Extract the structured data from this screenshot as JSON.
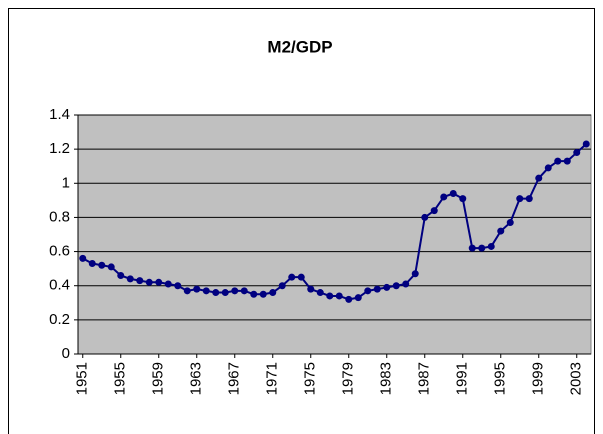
{
  "chart_data": {
    "type": "line",
    "title": "M2/GDP",
    "x": [
      1951,
      1952,
      1953,
      1954,
      1955,
      1956,
      1957,
      1958,
      1959,
      1960,
      1961,
      1962,
      1963,
      1964,
      1965,
      1966,
      1967,
      1968,
      1969,
      1970,
      1971,
      1972,
      1973,
      1974,
      1975,
      1976,
      1977,
      1978,
      1979,
      1980,
      1981,
      1982,
      1983,
      1984,
      1985,
      1986,
      1987,
      1988,
      1989,
      1990,
      1991,
      1992,
      1993,
      1994,
      1995,
      1996,
      1997,
      1998,
      1999,
      2000,
      2001,
      2002,
      2003,
      2004
    ],
    "series": [
      {
        "color": "#000080",
        "values": [
          0.56,
          0.53,
          0.52,
          0.51,
          0.46,
          0.44,
          0.43,
          0.42,
          0.42,
          0.41,
          0.4,
          0.37,
          0.38,
          0.37,
          0.36,
          0.36,
          0.37,
          0.37,
          0.35,
          0.35,
          0.36,
          0.4,
          0.45,
          0.45,
          0.38,
          0.36,
          0.34,
          0.34,
          0.32,
          0.33,
          0.37,
          0.38,
          0.39,
          0.4,
          0.41,
          0.47,
          0.8,
          0.84,
          0.92,
          0.94,
          0.91,
          0.62,
          0.62,
          0.63,
          0.72,
          0.77,
          0.91,
          0.91,
          1.03,
          1.09,
          1.13,
          1.13,
          1.18,
          1.23
        ]
      }
    ],
    "xlim": [
      1950.5,
      2004.5
    ],
    "xticks": [
      1951,
      1955,
      1959,
      1963,
      1967,
      1971,
      1975,
      1979,
      1983,
      1987,
      1991,
      1995,
      1999,
      2003
    ],
    "ylim": [
      0,
      1.4
    ],
    "yticks": [
      0,
      0.2,
      0.4,
      0.6,
      0.8,
      1,
      1.2,
      1.4
    ],
    "grid": true,
    "plot_color": "#c0c0c0"
  }
}
